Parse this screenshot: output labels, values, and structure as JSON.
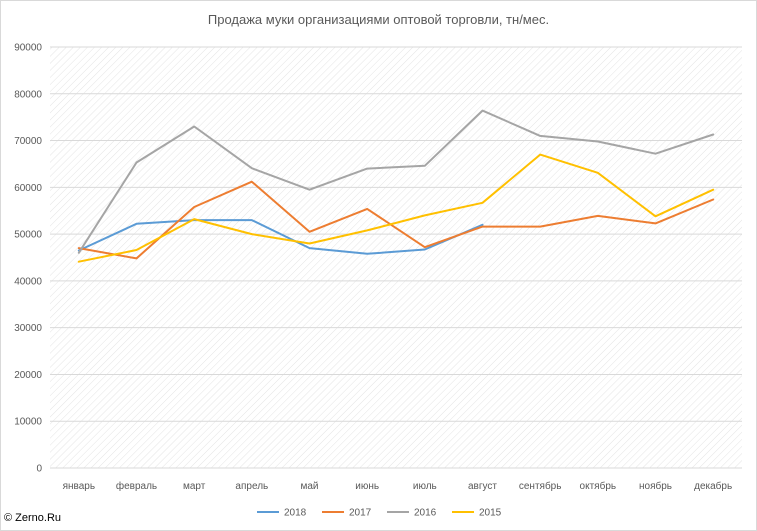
{
  "chart_data": {
    "type": "line",
    "title": "Продажа муки организациями оптовой торговли, тн/мес.",
    "categories": [
      "январь",
      "февраль",
      "март",
      "апрель",
      "май",
      "июнь",
      "июль",
      "август",
      "сентябрь",
      "октябрь",
      "ноябрь",
      "декабрь"
    ],
    "ylim": [
      0,
      90000
    ],
    "yticks": [
      0,
      10000,
      20000,
      30000,
      40000,
      50000,
      60000,
      70000,
      80000,
      90000
    ],
    "grid": true,
    "legend": "bottom",
    "series": [
      {
        "name": "2018",
        "color": "#5b9bd5",
        "values": [
          46500,
          52200,
          53000,
          53000,
          47000,
          45800,
          46700,
          52000,
          null,
          null,
          null,
          null
        ]
      },
      {
        "name": "2017",
        "color": "#ed7d31",
        "values": [
          47000,
          44800,
          55800,
          61200,
          50500,
          55400,
          47200,
          51600,
          51600,
          53900,
          52300,
          57400
        ]
      },
      {
        "name": "2016",
        "color": "#a5a5a5",
        "values": [
          46000,
          65300,
          73000,
          64100,
          59500,
          64000,
          64600,
          76400,
          71000,
          69800,
          67200,
          71300
        ]
      },
      {
        "name": "2015",
        "color": "#ffc000",
        "values": [
          44100,
          46600,
          53200,
          50000,
          48000,
          50800,
          54000,
          56700,
          67000,
          63100,
          53800,
          59500
        ]
      }
    ]
  },
  "watermark": "© Zerno.Ru"
}
